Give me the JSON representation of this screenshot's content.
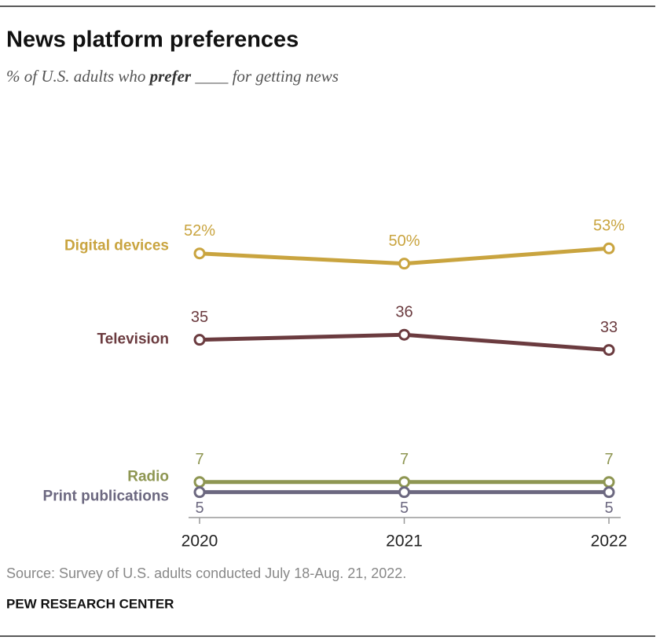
{
  "chart_data": {
    "type": "line",
    "title": "News platform preferences",
    "subtitle": [
      "% of U.S. adults who ",
      "prefer",
      " ____ for getting news"
    ],
    "categories": [
      "2020",
      "2021",
      "2022"
    ],
    "ylim": [
      0,
      60
    ],
    "series": [
      {
        "name": "Digital devices",
        "color": "#c9a43f",
        "values": [
          52,
          50,
          53
        ],
        "value_labels": [
          "52%",
          "50%",
          "53%"
        ],
        "label_position": "above"
      },
      {
        "name": "Television",
        "color": "#6b3b3f",
        "values": [
          35,
          36,
          33
        ],
        "label_position": "above"
      },
      {
        "name": "Radio",
        "color": "#8e9652",
        "values": [
          7,
          7,
          7
        ],
        "label_position": "above"
      },
      {
        "name": "Print publications",
        "color": "#6c6880",
        "values": [
          5,
          5,
          5
        ],
        "label_position": "below"
      }
    ],
    "source": "Source: Survey of U.S. adults conducted July 18-Aug. 21, 2022.",
    "credit": "PEW RESEARCH CENTER"
  }
}
